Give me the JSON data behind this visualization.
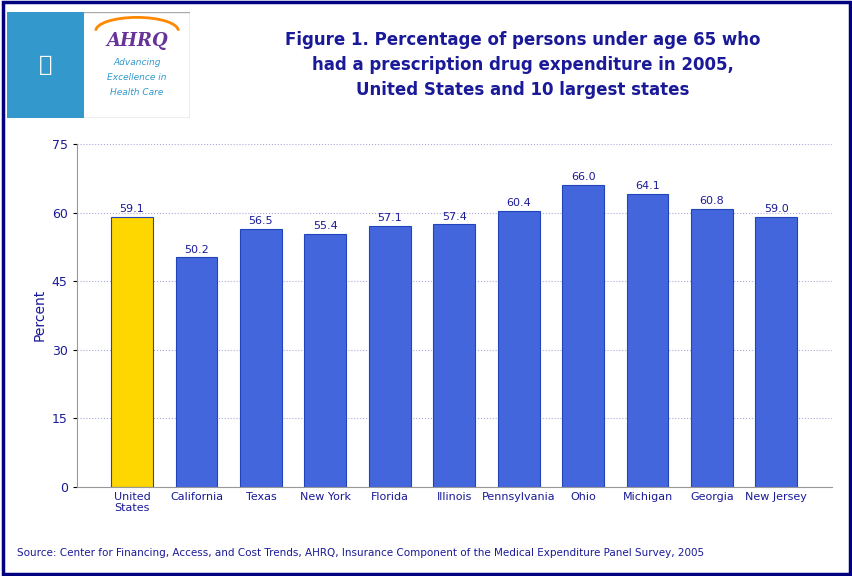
{
  "categories": [
    "United\nStates",
    "California",
    "Texas",
    "New York",
    "Florida",
    "Illinois",
    "Pennsylvania",
    "Ohio",
    "Michigan",
    "Georgia",
    "New Jersey"
  ],
  "values": [
    59.1,
    50.2,
    56.5,
    55.4,
    57.1,
    57.4,
    60.4,
    66.0,
    64.1,
    60.8,
    59.0
  ],
  "bar_colors": [
    "#FFD700",
    "#4466DD",
    "#4466DD",
    "#4466DD",
    "#4466DD",
    "#4466DD",
    "#4466DD",
    "#4466DD",
    "#4466DD",
    "#4466DD",
    "#4466DD"
  ],
  "bar_edge_color": "#2244BB",
  "title_line1": "Figure 1. Percentage of persons under age 65 who",
  "title_line2": "had a prescription drug expenditure in 2005,",
  "title_line3": "United States and 10 largest states",
  "ylabel": "Percent",
  "ylim": [
    0,
    75
  ],
  "yticks": [
    0,
    15,
    30,
    45,
    60,
    75
  ],
  "source_text": "Source: Center for Financing, Access, and Cost Trends, AHRQ, Insurance Component of the Medical Expenditure Panel Survey, 2005",
  "title_color": "#1A1A99",
  "ylabel_color": "#1A1A99",
  "tick_label_color": "#1A1A99",
  "value_label_color": "#1A1A99",
  "source_color": "#1A1A99",
  "background_color": "#FFFFFF",
  "outer_border_color": "#000080",
  "separator_line_color": "#000080",
  "grid_color": "#AAAADD",
  "ahrq_color": "#663399",
  "ahrq_sub_color": "#3399CC",
  "hhs_bg_color": "#3399CC",
  "logo_border_color": "#AAAAAA",
  "figsize": [
    8.53,
    5.76
  ],
  "dpi": 100
}
